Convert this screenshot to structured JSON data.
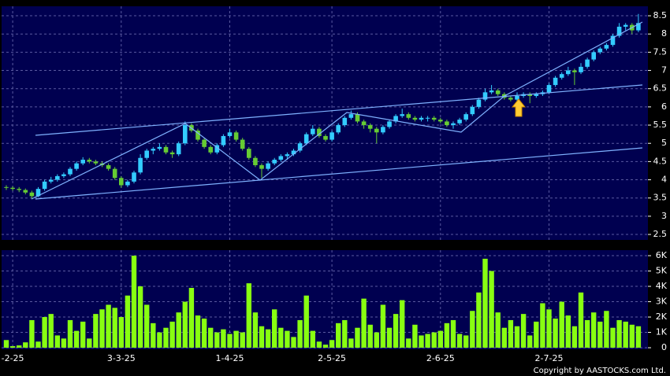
{
  "chart_data": {
    "type": "candlestick",
    "categories": [
      null,
      "-2-25",
      null,
      null,
      null,
      null,
      null,
      null,
      null,
      null,
      null,
      null,
      null,
      null,
      null,
      null,
      null,
      null,
      "3-3-25",
      null,
      null,
      null,
      null,
      null,
      null,
      null,
      null,
      null,
      null,
      null,
      null,
      null,
      null,
      null,
      null,
      "1-4-25",
      null,
      null,
      null,
      null,
      null,
      null,
      null,
      null,
      null,
      null,
      null,
      null,
      null,
      null,
      null,
      "2-5-25",
      null,
      null,
      null,
      null,
      null,
      null,
      null,
      null,
      null,
      null,
      null,
      null,
      null,
      null,
      null,
      null,
      "2-6-25",
      null,
      null,
      null,
      null,
      null,
      null,
      null,
      null,
      null,
      null,
      null,
      null,
      null,
      null,
      null,
      null,
      "2-7-25",
      null,
      null,
      null,
      null,
      null,
      null,
      null,
      null,
      null,
      null,
      null,
      null,
      null,
      null
    ],
    "ohlc": [
      [
        3.8,
        3.85,
        3.72,
        3.78
      ],
      [
        3.78,
        3.82,
        3.7,
        3.75
      ],
      [
        3.75,
        3.8,
        3.66,
        3.72
      ],
      [
        3.72,
        3.76,
        3.6,
        3.65
      ],
      [
        3.65,
        3.7,
        3.48,
        3.55
      ],
      [
        3.55,
        3.8,
        3.52,
        3.75
      ],
      [
        3.75,
        4.0,
        3.7,
        3.95
      ],
      [
        3.95,
        4.08,
        3.9,
        4.0
      ],
      [
        4.0,
        4.15,
        3.95,
        4.1
      ],
      [
        4.1,
        4.2,
        4.05,
        4.15
      ],
      [
        4.15,
        4.35,
        4.1,
        4.3
      ],
      [
        4.3,
        4.5,
        4.25,
        4.45
      ],
      [
        4.45,
        4.62,
        4.4,
        4.55
      ],
      [
        4.55,
        4.6,
        4.45,
        4.5
      ],
      [
        4.5,
        4.55,
        4.4,
        4.45
      ],
      [
        4.45,
        4.5,
        4.35,
        4.4
      ],
      [
        4.4,
        4.45,
        4.25,
        4.3
      ],
      [
        4.3,
        4.35,
        4.0,
        4.05
      ],
      [
        4.05,
        4.1,
        3.78,
        3.85
      ],
      [
        3.85,
        4.0,
        3.8,
        3.95
      ],
      [
        3.95,
        4.25,
        3.9,
        4.2
      ],
      [
        4.2,
        4.7,
        4.15,
        4.6
      ],
      [
        4.6,
        4.85,
        4.55,
        4.8
      ],
      [
        4.8,
        4.9,
        4.7,
        4.85
      ],
      [
        4.85,
        5.0,
        4.8,
        4.9
      ],
      [
        4.9,
        4.95,
        4.7,
        4.75
      ],
      [
        4.75,
        4.8,
        4.6,
        4.7
      ],
      [
        4.7,
        5.05,
        4.65,
        5.0
      ],
      [
        5.0,
        5.6,
        4.95,
        5.5
      ],
      [
        5.5,
        5.55,
        5.3,
        5.35
      ],
      [
        5.35,
        5.4,
        5.05,
        5.1
      ],
      [
        5.1,
        5.15,
        4.85,
        4.9
      ],
      [
        4.9,
        4.95,
        4.7,
        4.75
      ],
      [
        4.75,
        5.0,
        4.7,
        4.95
      ],
      [
        4.95,
        5.25,
        4.9,
        5.2
      ],
      [
        5.2,
        5.4,
        5.15,
        5.3
      ],
      [
        5.3,
        5.35,
        5.05,
        5.1
      ],
      [
        5.1,
        5.15,
        4.8,
        4.85
      ],
      [
        4.85,
        4.9,
        4.55,
        4.6
      ],
      [
        4.6,
        4.65,
        4.35,
        4.4
      ],
      [
        4.4,
        4.45,
        4.05,
        4.3
      ],
      [
        4.3,
        4.5,
        4.25,
        4.45
      ],
      [
        4.45,
        4.6,
        4.4,
        4.55
      ],
      [
        4.55,
        4.7,
        4.5,
        4.65
      ],
      [
        4.65,
        4.75,
        4.55,
        4.7
      ],
      [
        4.7,
        4.85,
        4.65,
        4.8
      ],
      [
        4.8,
        5.05,
        4.75,
        5.0
      ],
      [
        5.0,
        5.3,
        4.95,
        5.25
      ],
      [
        5.25,
        5.5,
        5.2,
        5.4
      ],
      [
        5.4,
        5.45,
        5.15,
        5.2
      ],
      [
        5.2,
        5.25,
        5.05,
        5.1
      ],
      [
        5.1,
        5.35,
        5.05,
        5.3
      ],
      [
        5.3,
        5.55,
        5.25,
        5.5
      ],
      [
        5.5,
        5.75,
        5.45,
        5.7
      ],
      [
        5.7,
        5.9,
        5.65,
        5.8
      ],
      [
        5.8,
        5.85,
        5.55,
        5.6
      ],
      [
        5.6,
        5.65,
        5.4,
        5.5
      ],
      [
        5.5,
        5.55,
        5.3,
        5.4
      ],
      [
        5.4,
        5.45,
        5.0,
        5.3
      ],
      [
        5.3,
        5.5,
        5.25,
        5.45
      ],
      [
        5.45,
        5.65,
        5.4,
        5.6
      ],
      [
        5.6,
        5.8,
        5.55,
        5.75
      ],
      [
        5.75,
        5.95,
        5.7,
        5.8
      ],
      [
        5.8,
        5.85,
        5.65,
        5.7
      ],
      [
        5.7,
        5.75,
        5.6,
        5.65
      ],
      [
        5.65,
        5.75,
        5.6,
        5.7
      ],
      [
        5.7,
        5.75,
        5.6,
        5.7
      ],
      [
        5.7,
        5.75,
        5.6,
        5.65
      ],
      [
        5.65,
        5.7,
        5.55,
        5.6
      ],
      [
        5.6,
        5.65,
        5.45,
        5.5
      ],
      [
        5.5,
        5.6,
        5.4,
        5.55
      ],
      [
        5.55,
        5.7,
        5.5,
        5.65
      ],
      [
        5.65,
        5.85,
        5.6,
        5.8
      ],
      [
        5.8,
        6.05,
        5.75,
        6.0
      ],
      [
        6.0,
        6.25,
        5.95,
        6.2
      ],
      [
        6.2,
        6.5,
        6.15,
        6.4
      ],
      [
        6.4,
        6.6,
        6.35,
        6.45
      ],
      [
        6.45,
        6.5,
        6.3,
        6.35
      ],
      [
        6.35,
        6.4,
        6.2,
        6.25
      ],
      [
        6.25,
        6.3,
        6.15,
        6.2
      ],
      [
        6.2,
        6.4,
        6.15,
        6.3
      ],
      [
        6.3,
        6.4,
        6.25,
        6.35
      ],
      [
        6.35,
        6.4,
        6.1,
        6.3
      ],
      [
        6.3,
        6.4,
        6.25,
        6.35
      ],
      [
        6.35,
        6.45,
        6.3,
        6.4
      ],
      [
        6.4,
        6.65,
        6.35,
        6.6
      ],
      [
        6.6,
        6.85,
        6.55,
        6.8
      ],
      [
        6.8,
        6.95,
        6.75,
        6.9
      ],
      [
        6.9,
        7.1,
        6.85,
        7.0
      ],
      [
        7.0,
        7.05,
        6.6,
        6.95
      ],
      [
        6.95,
        7.2,
        6.9,
        7.1
      ],
      [
        7.1,
        7.35,
        7.05,
        7.3
      ],
      [
        7.3,
        7.55,
        7.25,
        7.5
      ],
      [
        7.5,
        7.65,
        7.45,
        7.6
      ],
      [
        7.6,
        7.75,
        7.55,
        7.7
      ],
      [
        7.7,
        8.0,
        7.65,
        7.95
      ],
      [
        7.95,
        8.3,
        7.9,
        8.2
      ],
      [
        8.2,
        8.3,
        8.1,
        8.25
      ],
      [
        8.25,
        8.3,
        8.0,
        8.1
      ],
      [
        8.1,
        8.55,
        8.05,
        8.3
      ]
    ],
    "up_color": "#33ccff",
    "down_color": "#66cc33",
    "ylim": [
      2.35,
      8.76
    ],
    "yticks": [
      2.5,
      3,
      3.5,
      4,
      4.5,
      5,
      5.5,
      6,
      6.5,
      7,
      7.5,
      8,
      8.5
    ],
    "grid": true,
    "volume": {
      "color": "#88ff11",
      "values": [
        500,
        100,
        150,
        350,
        1800,
        400,
        2000,
        2200,
        800,
        600,
        1800,
        1100,
        1700,
        600,
        2200,
        2500,
        2800,
        2600,
        2000,
        3400,
        6000,
        4000,
        2800,
        1600,
        1000,
        1300,
        1700,
        2300,
        3000,
        3900,
        2100,
        1900,
        1300,
        1000,
        1200,
        900,
        1100,
        1000,
        4200,
        2300,
        1400,
        1200,
        2500,
        1300,
        1100,
        700,
        1800,
        3400,
        1100,
        400,
        200,
        500,
        1600,
        1800,
        600,
        1300,
        3200,
        1500,
        1000,
        2800,
        1300,
        2200,
        3100,
        600,
        1500,
        800,
        900,
        1000,
        1100,
        1600,
        1800,
        900,
        800,
        2400,
        3600,
        5800,
        5000,
        2300,
        1300,
        1800,
        1400,
        2200,
        800,
        1700,
        2900,
        2500,
        1900,
        3000,
        2100,
        1400,
        3600,
        1800,
        2300,
        1700,
        2400,
        1300,
        1800,
        1700,
        1500,
        1400
      ],
      "ylim": [
        -100,
        6360
      ],
      "yticks": [
        0,
        {
          "value": 1000,
          "label": "1K"
        },
        {
          "value": 2000,
          "label": "2K"
        },
        {
          "value": 3000,
          "label": "3K"
        },
        {
          "value": 4000,
          "label": "4K"
        },
        {
          "value": 5000,
          "label": "5K"
        },
        {
          "value": 6000,
          "label": "6K"
        }
      ]
    }
  },
  "footer": {
    "copyright": "Copyright by AASTOCKS.com Ltd."
  }
}
